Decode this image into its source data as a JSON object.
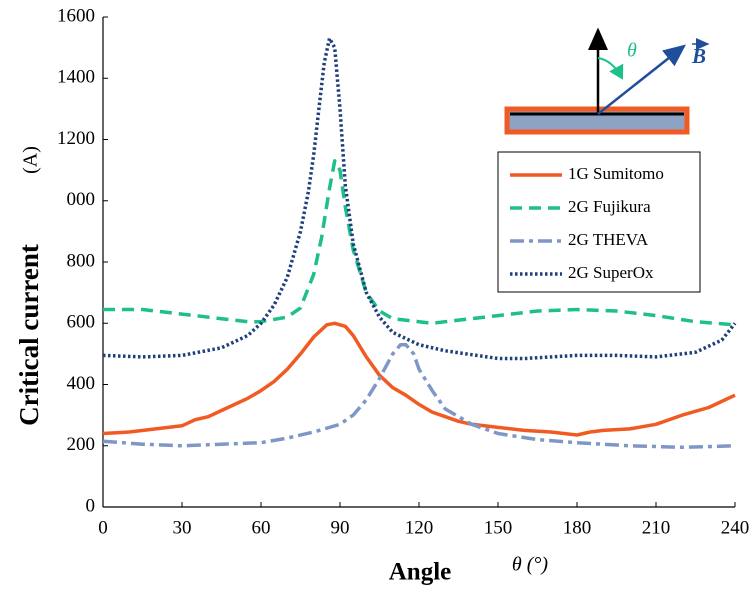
{
  "chart_data": {
    "type": "line",
    "xlabel": "Angle",
    "xlabel_symbol": "θ (°)",
    "ylabel": "Critical current",
    "ylabel_unit": "(A)",
    "inset_labels": {
      "angle": "θ",
      "field": "B"
    },
    "xlim": [
      0,
      240
    ],
    "xticks": [
      0,
      30,
      60,
      90,
      120,
      150,
      180,
      210,
      240
    ],
    "ylim": [
      0,
      1600
    ],
    "yticks": [
      0,
      200,
      400,
      600,
      800,
      {
        "value": 1000,
        "label": "000"
      },
      1200,
      1400,
      1600
    ],
    "grid": false,
    "legend": "upper right",
    "series": [
      {
        "name": "1G Sumitomo",
        "color": "#f15a22",
        "style": "solid",
        "x": [
          0,
          10,
          20,
          30,
          35,
          40,
          45,
          50,
          55,
          60,
          65,
          70,
          75,
          80,
          85,
          88,
          92,
          95,
          100,
          105,
          110,
          115,
          120,
          125,
          130,
          135,
          140,
          150,
          160,
          170,
          180,
          185,
          190,
          200,
          210,
          220,
          230,
          240
        ],
        "values": [
          240,
          245,
          255,
          265,
          285,
          295,
          315,
          335,
          355,
          380,
          410,
          450,
          500,
          555,
          595,
          600,
          590,
          560,
          490,
          430,
          390,
          365,
          335,
          310,
          295,
          280,
          270,
          260,
          250,
          245,
          235,
          245,
          250,
          255,
          270,
          300,
          325,
          365
        ]
      },
      {
        "name": "2G Fujikura",
        "color": "#1dbf8a",
        "style": "dashed",
        "x": [
          0,
          15,
          30,
          45,
          55,
          60,
          70,
          75,
          80,
          83,
          86,
          88,
          90,
          92,
          95,
          100,
          105,
          110,
          120,
          125,
          130,
          150,
          165,
          180,
          195,
          210,
          225,
          240
        ],
        "values": [
          645,
          645,
          630,
          615,
          605,
          605,
          620,
          650,
          760,
          880,
          1040,
          1130,
          1100,
          980,
          840,
          700,
          640,
          615,
          605,
          600,
          605,
          625,
          640,
          645,
          640,
          625,
          605,
          595
        ]
      },
      {
        "name": "2G THEVA",
        "color": "#7f97c7",
        "style": "dashdot",
        "x": [
          0,
          15,
          30,
          45,
          60,
          70,
          80,
          90,
          95,
          100,
          105,
          110,
          113,
          115,
          118,
          120,
          125,
          130,
          140,
          150,
          165,
          180,
          200,
          220,
          240
        ],
        "values": [
          215,
          205,
          200,
          205,
          210,
          225,
          245,
          270,
          300,
          350,
          420,
          500,
          530,
          530,
          500,
          450,
          380,
          320,
          270,
          240,
          220,
          210,
          200,
          195,
          200
        ]
      },
      {
        "name": "2G SuperOx",
        "color": "#1f3f7a",
        "style": "dotted",
        "x": [
          0,
          15,
          30,
          45,
          55,
          60,
          65,
          70,
          75,
          78,
          80,
          82,
          84,
          86,
          88,
          90,
          92,
          95,
          100,
          105,
          110,
          120,
          130,
          150,
          160,
          180,
          195,
          210,
          225,
          235,
          240
        ],
        "values": [
          495,
          490,
          495,
          520,
          560,
          600,
          660,
          750,
          900,
          1030,
          1150,
          1300,
          1450,
          1530,
          1500,
          1300,
          1050,
          860,
          700,
          620,
          570,
          530,
          510,
          485,
          485,
          495,
          495,
          490,
          505,
          545,
          600
        ]
      }
    ]
  }
}
